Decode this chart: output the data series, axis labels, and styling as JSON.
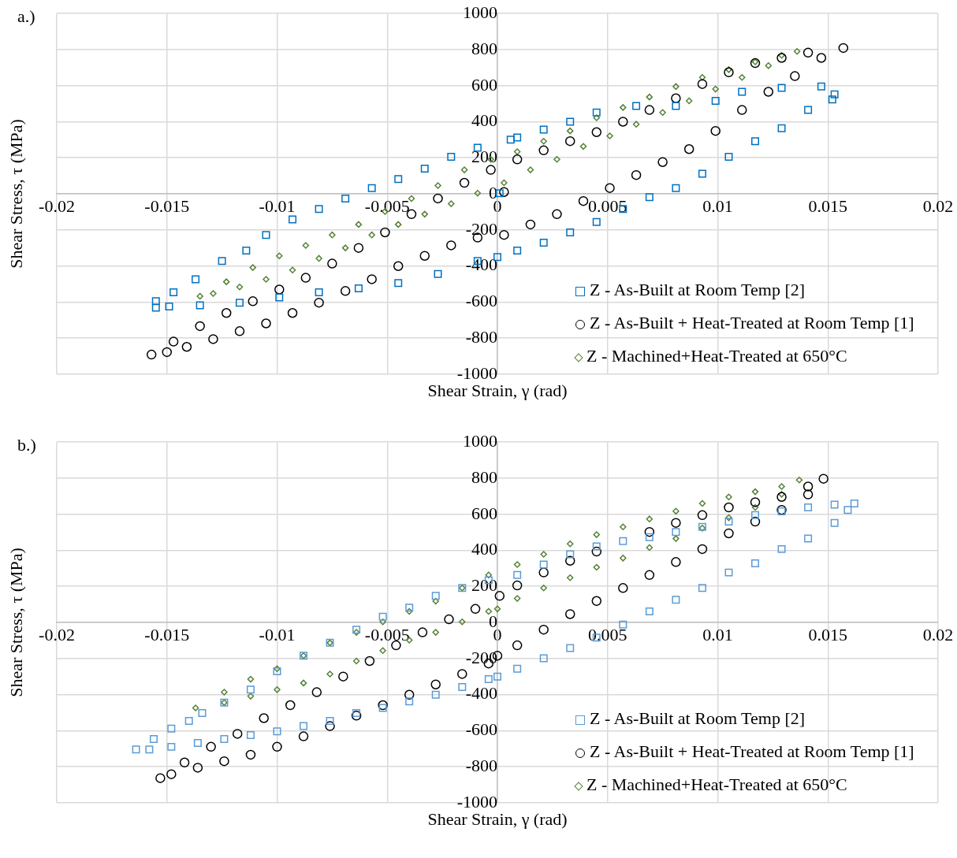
{
  "chart_data": [
    {
      "type": "scatter",
      "xlabel": "Shear Strain, γ (rad)",
      "ylabel": "Shear Stress, τ (MPa)",
      "annotations": [
        "a.)"
      ],
      "xlim": [
        -0.02,
        0.02
      ],
      "xticks": [
        -0.02,
        -0.015,
        -0.01,
        -0.005,
        0,
        0.005,
        0.01,
        0.015,
        0.02
      ],
      "ylim": [
        -1000,
        1000
      ],
      "yticks": [
        -1000,
        -800,
        -600,
        -400,
        -200,
        0,
        200,
        400,
        600,
        800,
        1000
      ],
      "grid": true,
      "legend": "bottom right",
      "series": [
        {
          "name": "Z - As-Built at Room Temp [2]",
          "color": "#0070c0",
          "marker": "square",
          "x": [
            -0.0155,
            -0.0147,
            -0.0137,
            -0.0125,
            -0.0114,
            -0.0105,
            -0.0093,
            -0.0081,
            -0.0069,
            -0.0057,
            -0.0045,
            -0.0033,
            -0.0021,
            -0.0009,
            0.0006,
            0.0009,
            0.0021,
            0.0033,
            0.0045,
            0.0063,
            0.0081,
            0.0099,
            0.0111,
            0.0129,
            0.0147,
            0.0153,
            0.0152,
            0.0141,
            0.0129,
            0.0117,
            0.0105,
            0.0093,
            0.0081,
            0.0069,
            0.0057,
            0.0045,
            0.0033,
            0.0021,
            0.0009,
            0,
            -0.0009,
            -0.0027,
            -0.0045,
            -0.0063,
            -0.0081,
            -0.0099,
            -0.0117,
            -0.0135,
            -0.0149,
            -0.0155,
            0.0001
          ],
          "values": [
            -596,
            -546,
            -474,
            -373,
            -315,
            -228,
            -142,
            -84,
            -26,
            32,
            82,
            140,
            205,
            256,
            300,
            313,
            356,
            400,
            451,
            487,
            487,
            516,
            566,
            588,
            595,
            552,
            523,
            465,
            364,
            292,
            205,
            111,
            32,
            -19,
            -84,
            -156,
            -214,
            -271,
            -315,
            -351,
            -373,
            -445,
            -495,
            -524,
            -546,
            -575,
            -604,
            -618,
            -625,
            -632,
            3
          ]
        },
        {
          "name": "Z - As-Built + Heat-Treated at Room Temp [1]",
          "color": "#000000",
          "marker": "circle",
          "x": [
            -0.0157,
            -0.0147,
            -0.0135,
            -0.0123,
            -0.0111,
            -0.0099,
            -0.0087,
            -0.0075,
            -0.0063,
            -0.0051,
            -0.0039,
            -0.0027,
            -0.0015,
            -0.0003,
            0.0009,
            0.0021,
            0.0033,
            0.0045,
            0.0057,
            0.0069,
            0.0081,
            0.0093,
            0.0105,
            0.0117,
            0.0129,
            0.0141,
            0.0157,
            0.0147,
            0.0135,
            0.0123,
            0.0111,
            0.0099,
            0.0087,
            0.0075,
            0.0063,
            0.0051,
            0.0039,
            0.0027,
            0.0015,
            0.0003,
            -0.0009,
            -0.0021,
            -0.0033,
            -0.0045,
            -0.0057,
            -0.0069,
            -0.0081,
            -0.0093,
            -0.0105,
            -0.0117,
            -0.0129,
            -0.0141,
            -0.015,
            0.0003
          ],
          "values": [
            -892,
            -820,
            -734,
            -661,
            -596,
            -531,
            -466,
            -387,
            -300,
            -214,
            -113,
            -26,
            61,
            133,
            191,
            241,
            292,
            342,
            400,
            465,
            530,
            609,
            674,
            725,
            754,
            783,
            809,
            754,
            653,
            566,
            465,
            349,
            248,
            176,
            104,
            32,
            -40,
            -113,
            -170,
            -228,
            -243,
            -286,
            -344,
            -401,
            -474,
            -539,
            -604,
            -661,
            -719,
            -762,
            -806,
            -849,
            -878,
            10
          ]
        },
        {
          "name": "Z - Machined+Heat-Treated at 650°C",
          "color": "#548235",
          "marker": "diamond",
          "x": [
            -0.0135,
            -0.0123,
            -0.0111,
            -0.0099,
            -0.0087,
            -0.0075,
            -0.0063,
            -0.0051,
            -0.0039,
            -0.0027,
            -0.0015,
            -0.0003,
            0.0009,
            0.0021,
            0.0033,
            0.0045,
            0.0057,
            0.0069,
            0.0081,
            0.0093,
            0.0105,
            0.0117,
            0.0129,
            0.0136,
            0.0123,
            0.0111,
            0.0099,
            0.0087,
            0.0075,
            0.0063,
            0.0051,
            0.0039,
            0.0027,
            0.0015,
            0.0003,
            -0.0009,
            -0.0021,
            -0.0033,
            -0.0045,
            -0.0057,
            -0.0069,
            -0.0081,
            -0.0093,
            -0.0105,
            -0.0117,
            -0.0129
          ],
          "values": [
            -568,
            -488,
            -409,
            -344,
            -286,
            -228,
            -170,
            -98,
            -26,
            46,
            133,
            191,
            234,
            292,
            349,
            422,
            479,
            537,
            595,
            646,
            689,
            732,
            768,
            790,
            711,
            646,
            581,
            516,
            451,
            386,
            321,
            263,
            191,
            133,
            61,
            3,
            -55,
            -113,
            -170,
            -228,
            -300,
            -358,
            -423,
            -474,
            -517,
            -553
          ]
        }
      ]
    },
    {
      "type": "scatter",
      "xlabel": "Shear Strain, γ (rad)",
      "ylabel": "Shear Stress, τ (MPa)",
      "annotations": [
        "b.)"
      ],
      "xlim": [
        -0.02,
        0.02
      ],
      "xticks": [
        -0.02,
        -0.015,
        -0.01,
        -0.005,
        0,
        0.005,
        0.01,
        0.015,
        0.02
      ],
      "ylim": [
        -1000,
        1000
      ],
      "yticks": [
        -1000,
        -800,
        -600,
        -400,
        -200,
        0,
        200,
        400,
        600,
        800,
        1000
      ],
      "grid": true,
      "legend": "bottom right",
      "series": [
        {
          "name": "Z - As-Built at Room Temp [2]",
          "color": "#5b9bd5",
          "marker": "square",
          "x": [
            -0.0164,
            -0.0156,
            -0.0148,
            -0.014,
            -0.0134,
            -0.0124,
            -0.0112,
            -0.01,
            -0.0088,
            -0.0076,
            -0.0064,
            -0.0052,
            -0.004,
            -0.0028,
            -0.0016,
            -0.0004,
            0.0009,
            0.0021,
            0.0033,
            0.0045,
            0.0057,
            0.0069,
            0.0081,
            0.0093,
            0.0105,
            0.0117,
            0.0129,
            0.0141,
            0.0153,
            0.0162,
            0.0159,
            0.0153,
            0.0141,
            0.0129,
            0.0117,
            0.0105,
            0.0093,
            0.0081,
            0.0069,
            0.0057,
            0.0045,
            0.0033,
            0.0021,
            0.0009,
            0,
            -0.0004,
            -0.0016,
            -0.0028,
            -0.004,
            -0.0052,
            -0.0064,
            -0.0076,
            -0.0088,
            -0.01,
            -0.0112,
            -0.0124,
            -0.0136,
            -0.0148,
            -0.0158
          ],
          "values": [
            -705,
            -647,
            -589,
            -546,
            -503,
            -445,
            -373,
            -271,
            -185,
            -113,
            -40,
            32,
            82,
            147,
            191,
            234,
            263,
            321,
            378,
            422,
            451,
            473,
            502,
            530,
            559,
            595,
            616,
            638,
            653,
            660,
            624,
            552,
            465,
            407,
            328,
            277,
            191,
            126,
            61,
            -12,
            -84,
            -142,
            -199,
            -257,
            -300,
            -315,
            -358,
            -401,
            -438,
            -474,
            -503,
            -546,
            -575,
            -604,
            -625,
            -647,
            -669,
            -690,
            -705
          ]
        },
        {
          "name": "Z - As-Built + Heat-Treated at Room Temp [1]",
          "color": "#000000",
          "marker": "circle",
          "x": [
            -0.0153,
            -0.0142,
            -0.013,
            -0.0118,
            -0.0106,
            -0.0094,
            -0.0082,
            -0.007,
            -0.0058,
            -0.0046,
            -0.0034,
            -0.0022,
            -0.001,
            0.0001,
            0.0009,
            0.0021,
            0.0033,
            0.0045,
            0.0057,
            0.0069,
            0.0081,
            0.0093,
            0.0105,
            0.0117,
            0.0129,
            0.0141,
            0.0148,
            0.0141,
            0.0129,
            0.0117,
            0.0105,
            0.0093,
            0.0081,
            0.0069,
            0.0057,
            0.0045,
            0.0033,
            0.0021,
            0.0009,
            0,
            -0.0004,
            -0.0016,
            -0.0028,
            -0.004,
            -0.0052,
            -0.0064,
            -0.0076,
            -0.0088,
            -0.01,
            -0.0112,
            -0.0124,
            -0.0136,
            -0.0148
          ],
          "values": [
            -864,
            -777,
            -690,
            -618,
            -531,
            -459,
            -387,
            -300,
            -214,
            -127,
            -55,
            17,
            75,
            147,
            205,
            277,
            342,
            393,
            null,
            502,
            552,
            595,
            638,
            667,
            696,
            754,
            797,
            710,
            624,
            559,
            494,
            407,
            335,
            263,
            191,
            119,
            46,
            -40,
            -127,
            -185,
            -228,
            -286,
            -344,
            -401,
            -459,
            -517,
            -575,
            -632,
            -690,
            -734,
            -770,
            -806,
            -842
          ]
        },
        {
          "name": "Z - Machined+Heat-Treated at 650°C",
          "color": "#548235",
          "marker": "diamond",
          "x": [
            -0.0137,
            -0.0124,
            -0.0112,
            -0.01,
            -0.0088,
            -0.0076,
            -0.0064,
            -0.0052,
            -0.004,
            -0.0028,
            -0.0016,
            -0.0004,
            0.0009,
            0.0021,
            0.0033,
            0.0045,
            0.0057,
            0.0069,
            0.0081,
            0.0093,
            0.0105,
            0.0117,
            0.0129,
            0.0137,
            0.0129,
            0.0117,
            0.0105,
            0.0093,
            0.0081,
            0.0069,
            0.0057,
            0.0045,
            0.0033,
            0.0021,
            0.0009,
            0,
            -0.0004,
            -0.0016,
            -0.0028,
            -0.004,
            -0.0052,
            -0.0064,
            -0.0076,
            -0.0088,
            -0.01,
            -0.0112,
            -0.0124
          ],
          "values": [
            -474,
            -387,
            -315,
            -257,
            -185,
            -113,
            -55,
            3,
            61,
            118,
            191,
            263,
            321,
            378,
            436,
            487,
            530,
            574,
            617,
            660,
            696,
            725,
            754,
            790,
            711,
            638,
            581,
            523,
            465,
            415,
            357,
            306,
            248,
            191,
            133,
            75,
            61,
            3,
            -55,
            -98,
            -156,
            -214,
            -286,
            -336,
            -373,
            -409,
            -445
          ]
        }
      ]
    }
  ]
}
